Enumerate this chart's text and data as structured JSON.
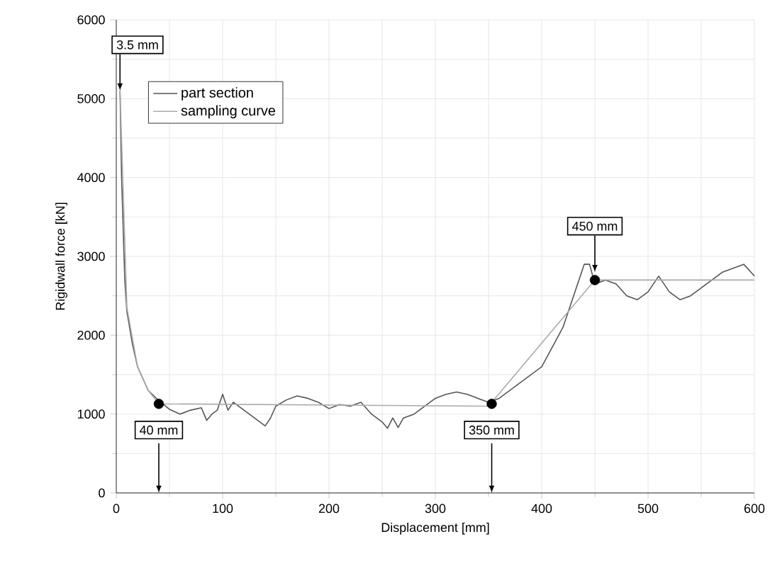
{
  "chart_data": {
    "type": "line",
    "xlabel": "Displacement [mm]",
    "ylabel": "Rigidwall  force [kN]",
    "xlim": [
      0,
      600
    ],
    "xticks": [
      0,
      100,
      200,
      300,
      400,
      500,
      600
    ],
    "ylim": [
      0,
      6000
    ],
    "yticks": [
      0,
      1000,
      2000,
      3000,
      4000,
      5000,
      6000
    ],
    "grid": true,
    "legend": "top left",
    "series": [
      {
        "name": "part section",
        "color": "#555555",
        "x": [
          3.5,
          5,
          8,
          10,
          15,
          20,
          30,
          40,
          50,
          60,
          70,
          80,
          85,
          90,
          95,
          100,
          105,
          110,
          120,
          130,
          140,
          145,
          150,
          160,
          170,
          180,
          190,
          200,
          210,
          220,
          230,
          240,
          250,
          255,
          260,
          265,
          270,
          280,
          290,
          300,
          310,
          320,
          330,
          340,
          350,
          360,
          370,
          380,
          390,
          400,
          410,
          420,
          430,
          440,
          445,
          450,
          460,
          470,
          480,
          490,
          500,
          510,
          520,
          530,
          540,
          550,
          560,
          570,
          580,
          590,
          600
        ],
        "values": [
          5100,
          4000,
          2700,
          2300,
          1900,
          1600,
          1300,
          1170,
          1060,
          1000,
          1050,
          1080,
          920,
          1000,
          1050,
          1250,
          1050,
          1150,
          1050,
          950,
          850,
          950,
          1100,
          1180,
          1230,
          1200,
          1150,
          1070,
          1120,
          1100,
          1150,
          1000,
          900,
          820,
          950,
          830,
          950,
          1000,
          1100,
          1200,
          1250,
          1280,
          1250,
          1200,
          1150,
          1200,
          1300,
          1400,
          1500,
          1600,
          1850,
          2100,
          2500,
          2900,
          2900,
          2650,
          2700,
          2650,
          2500,
          2450,
          2550,
          2750,
          2550,
          2450,
          2500,
          2600,
          2700,
          2800,
          2850,
          2900,
          2750
        ]
      },
      {
        "name": "sampling curve",
        "color": "#aaaaaa",
        "x": [
          3.5,
          10,
          20,
          30,
          40,
          350,
          450,
          600
        ],
        "values": [
          5100,
          2350,
          1600,
          1300,
          1130,
          1100,
          2700,
          2700
        ]
      },
      {
        "type": "scatter",
        "color": "#000000",
        "x": [
          40,
          353,
          450
        ],
        "values": [
          1130,
          1130,
          2700
        ]
      }
    ],
    "annotations": [
      {
        "text": "3.5 mm",
        "x": 3.5,
        "y": 5100
      },
      {
        "text": "40 mm",
        "x": 40,
        "y": 1130
      },
      {
        "text": "350 mm",
        "x": 353,
        "y": 1130
      },
      {
        "text": "450 mm",
        "x": 450,
        "y": 2800
      }
    ]
  }
}
